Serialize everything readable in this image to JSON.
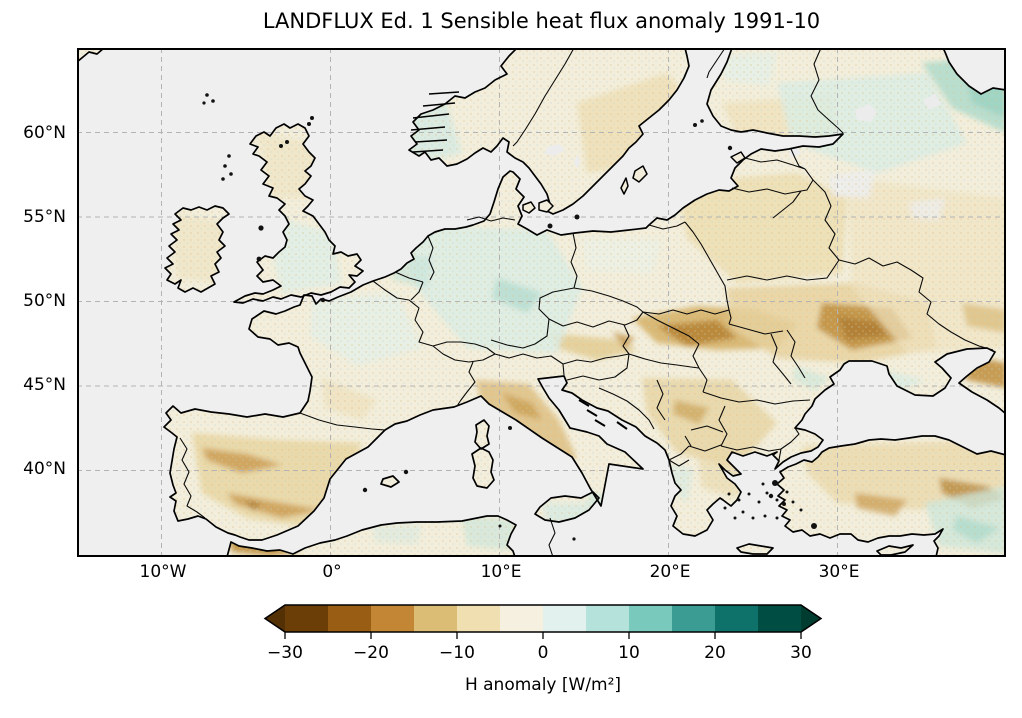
{
  "title": "LANDFLUX Ed. 1 Sensible heat flux anomaly 1991-10",
  "axes": {
    "lat_labels": [
      "60°N",
      "55°N",
      "50°N",
      "45°N",
      "40°N"
    ],
    "lon_labels": [
      "10°W",
      "0°",
      "10°E",
      "20°E",
      "30°E"
    ]
  },
  "colorbar": {
    "label": "H anomaly [W/m²]",
    "tick_labels": [
      "−30",
      "−20",
      "−10",
      "0",
      "10",
      "20",
      "30"
    ],
    "tick_values": [
      -30,
      -20,
      -10,
      0,
      10,
      20,
      30
    ],
    "levels": [
      -30,
      -25,
      -20,
      -15,
      -10,
      -5,
      0,
      5,
      10,
      15,
      20,
      25,
      30
    ],
    "segment_colors": [
      "#6b3e07",
      "#995d13",
      "#c28634",
      "#dcbd76",
      "#f0dfb1",
      "#f6f0e0",
      "#e2f0ee",
      "#b5e3dc",
      "#7ac9bd",
      "#3b9c93",
      "#0e726a",
      "#004e43"
    ],
    "under_color": "#543005",
    "over_color": "#003c30",
    "colormap_name": "BrBG (brown = negative, teal = positive)"
  },
  "map_palette": {
    "ocean": "#efefef",
    "land_base": "#f3eedb",
    "coastline": "#000000",
    "gridline": "#b3b3b3"
  },
  "chart_data": {
    "type": "heatmap",
    "title": "LANDFLUX Ed. 1 Sensible heat flux anomaly 1991-10",
    "variable": "H anomaly [W/m²]",
    "colorbar_ticks": [
      -30,
      -20,
      -10,
      0,
      10,
      20,
      30
    ],
    "colorbar_range": [
      -30,
      30
    ],
    "colorbar_extend": "both",
    "map_extent": {
      "lon": [
        -15,
        40
      ],
      "lat": [
        35,
        65
      ]
    },
    "gridlines": {
      "lon": [
        -10,
        0,
        10,
        20,
        30
      ],
      "lat": [
        40,
        45,
        50,
        55,
        60
      ]
    },
    "legend_position": "bottom",
    "region_anomalies_Wm2": [
      {
        "region": "central Spain",
        "anomaly": -8
      },
      {
        "region": "Portugal",
        "anomaly": -2
      },
      {
        "region": "northern Italy / Alps south",
        "anomaly": -9
      },
      {
        "region": "eastern Austria",
        "anomaly": -8
      },
      {
        "region": "southern Poland / Carpathians",
        "anomaly": -12
      },
      {
        "region": "central Ukraine",
        "anomaly": -12
      },
      {
        "region": "Belarus / Baltic states",
        "anomaly": -4
      },
      {
        "region": "Balkans / Serbia / Bulgaria",
        "anomaly": -5
      },
      {
        "region": "central Turkey",
        "anomaly": -4
      },
      {
        "region": "eastern Turkey",
        "anomaly": -10
      },
      {
        "region": "southeastern Turkey / Syria",
        "anomaly": 8
      },
      {
        "region": "Germany / Benelux",
        "anomaly": 4
      },
      {
        "region": "northern France",
        "anomaly": 2
      },
      {
        "region": "England",
        "anomaly": 2
      },
      {
        "region": "southern Norway",
        "anomaly": 4
      },
      {
        "region": "northwest Russia",
        "anomaly": 6
      },
      {
        "region": "northeast Russia corner",
        "anomaly": 10
      },
      {
        "region": "Crimea",
        "anomaly": 3
      },
      {
        "region": "Sicily / Calabria",
        "anomaly": 4
      },
      {
        "region": "Tunisia",
        "anomaly": 5
      },
      {
        "region": "Morocco",
        "anomaly": -12
      }
    ]
  }
}
